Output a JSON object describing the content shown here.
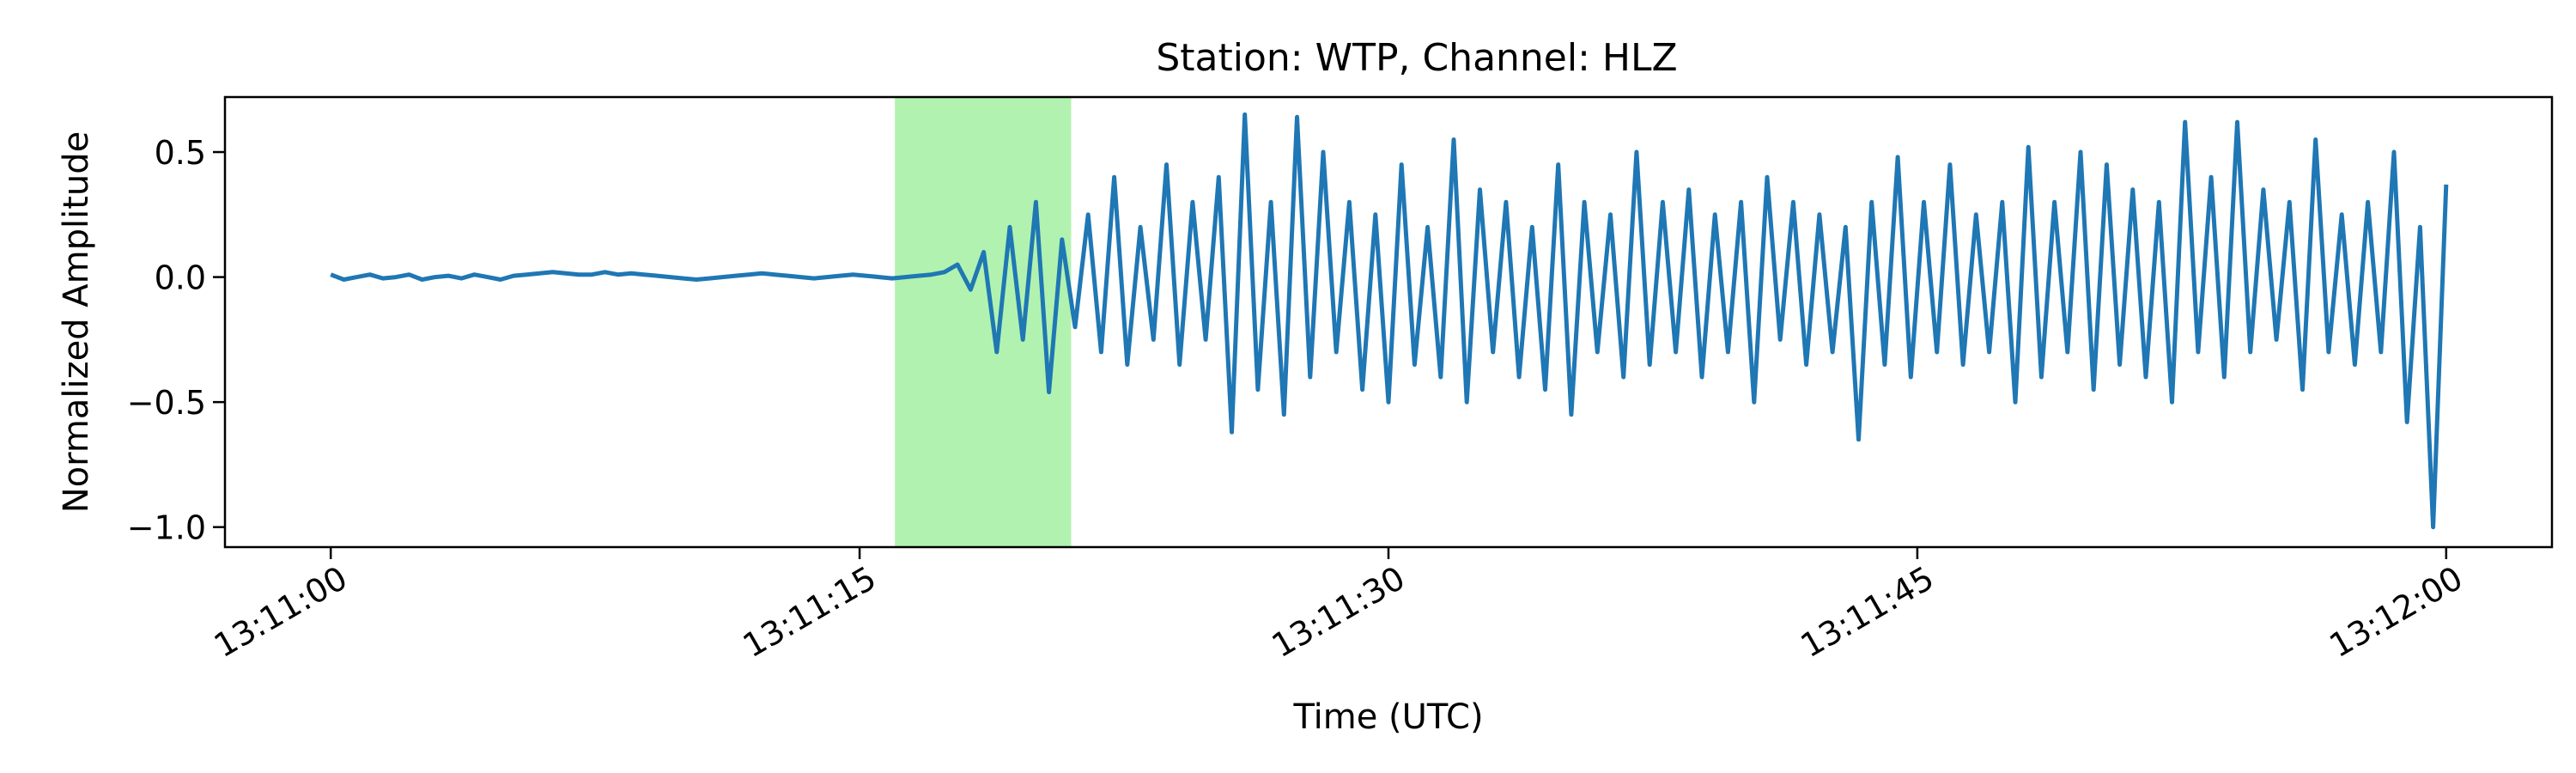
{
  "chart_data": {
    "type": "line",
    "title": "Station: WTP, Channel: HLZ",
    "xlabel": "Time (UTC)",
    "ylabel": "Normalized Amplitude",
    "xlim": [
      "13:10:57",
      "13:12:03"
    ],
    "ylim": [
      -1.08,
      0.72
    ],
    "x_ticks": [
      "13:11:00",
      "13:11:15",
      "13:11:30",
      "13:11:45",
      "13:12:00"
    ],
    "y_ticks": [
      0.5,
      0.0,
      -0.5,
      -1.0
    ],
    "y_tick_labels": [
      "0.5",
      "0.0",
      "−0.5",
      "−1.0"
    ],
    "grid": false,
    "highlight_region": {
      "start": "13:11:16",
      "end": "13:11:21",
      "color": "#b2f2b0"
    },
    "series": [
      {
        "color": "#1f77b4",
        "x_start": "13:11:00",
        "x_end": "13:12:00",
        "values": [
          0.01,
          -0.01,
          0.0,
          0.01,
          -0.005,
          0.0,
          0.01,
          -0.01,
          0.0,
          0.005,
          -0.005,
          0.01,
          0.0,
          -0.01,
          0.005,
          0.01,
          0.015,
          0.02,
          0.015,
          0.01,
          0.01,
          0.02,
          0.01,
          0.015,
          0.01,
          0.005,
          0.0,
          -0.005,
          -0.01,
          -0.005,
          0.0,
          0.005,
          0.01,
          0.015,
          0.01,
          0.005,
          0.0,
          -0.005,
          0.0,
          0.005,
          0.01,
          0.005,
          0.0,
          -0.005,
          0.0,
          0.005,
          0.01,
          0.02,
          0.05,
          -0.05,
          0.1,
          -0.3,
          0.2,
          -0.25,
          0.3,
          -0.46,
          0.15,
          -0.2,
          0.25,
          -0.3,
          0.4,
          -0.35,
          0.2,
          -0.25,
          0.45,
          -0.35,
          0.3,
          -0.25,
          0.4,
          -0.62,
          0.65,
          -0.45,
          0.3,
          -0.55,
          0.64,
          -0.4,
          0.5,
          -0.3,
          0.3,
          -0.45,
          0.25,
          -0.5,
          0.45,
          -0.35,
          0.2,
          -0.4,
          0.55,
          -0.5,
          0.35,
          -0.3,
          0.3,
          -0.4,
          0.2,
          -0.45,
          0.45,
          -0.55,
          0.3,
          -0.3,
          0.25,
          -0.4,
          0.5,
          -0.35,
          0.3,
          -0.3,
          0.35,
          -0.4,
          0.25,
          -0.3,
          0.3,
          -0.5,
          0.4,
          -0.25,
          0.3,
          -0.35,
          0.25,
          -0.3,
          0.2,
          -0.65,
          0.3,
          -0.35,
          0.48,
          -0.4,
          0.3,
          -0.3,
          0.45,
          -0.35,
          0.25,
          -0.3,
          0.3,
          -0.5,
          0.52,
          -0.4,
          0.3,
          -0.3,
          0.5,
          -0.45,
          0.45,
          -0.35,
          0.35,
          -0.4,
          0.3,
          -0.5,
          0.62,
          -0.3,
          0.4,
          -0.4,
          0.62,
          -0.3,
          0.35,
          -0.25,
          0.3,
          -0.45,
          0.55,
          -0.3,
          0.25,
          -0.35,
          0.3,
          -0.3,
          0.5,
          -0.58,
          0.2,
          -1.0,
          0.37
        ]
      }
    ]
  }
}
